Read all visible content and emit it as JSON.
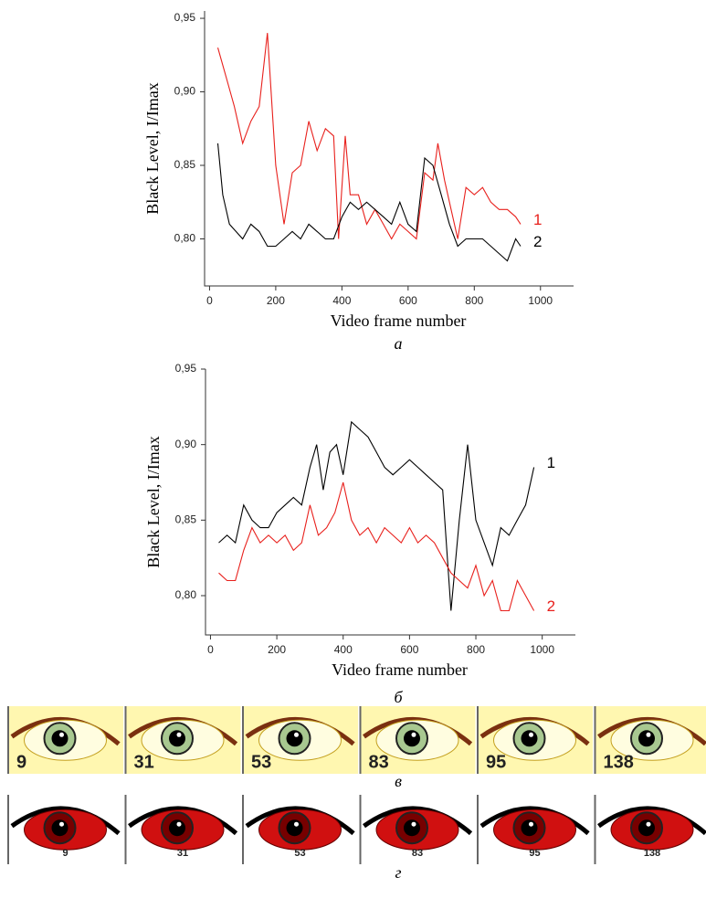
{
  "chart_data": [
    {
      "type": "line",
      "x_label": "Video frame number",
      "y_label": "Black Level, I/Imax",
      "caption": "а",
      "xlim": [
        -15,
        1100
      ],
      "xticks": [
        0,
        200,
        400,
        600,
        800,
        1000
      ],
      "ylim": [
        0.768,
        0.955
      ],
      "yticks": [
        {
          "value": 0.8,
          "label": "0,80"
        },
        {
          "value": 0.85,
          "label": "0,85"
        },
        {
          "value": 0.9,
          "label": "0,90"
        },
        {
          "value": 0.95,
          "label": "0,95"
        }
      ],
      "series": [
        {
          "name": "1",
          "color": "#e8201c",
          "x": [
            25,
            50,
            75,
            100,
            125,
            150,
            175,
            200,
            225,
            250,
            275,
            300,
            325,
            350,
            375,
            390,
            410,
            425,
            450,
            475,
            500,
            525,
            550,
            575,
            600,
            625,
            650,
            675,
            690,
            710,
            730,
            750,
            775,
            800,
            825,
            850,
            875,
            900,
            925,
            940
          ],
          "values": [
            0.93,
            0.91,
            0.89,
            0.865,
            0.88,
            0.89,
            0.94,
            0.85,
            0.81,
            0.845,
            0.85,
            0.88,
            0.86,
            0.875,
            0.87,
            0.8,
            0.87,
            0.83,
            0.83,
            0.81,
            0.82,
            0.81,
            0.8,
            0.81,
            0.805,
            0.8,
            0.845,
            0.84,
            0.865,
            0.84,
            0.82,
            0.8,
            0.835,
            0.83,
            0.835,
            0.825,
            0.82,
            0.82,
            0.815,
            0.81
          ]
        },
        {
          "name": "2",
          "color": "#000000",
          "x": [
            25,
            40,
            60,
            80,
            100,
            125,
            150,
            175,
            200,
            225,
            250,
            275,
            300,
            325,
            350,
            375,
            400,
            425,
            450,
            475,
            500,
            525,
            550,
            575,
            600,
            625,
            650,
            675,
            700,
            725,
            750,
            775,
            800,
            825,
            850,
            875,
            900,
            925,
            940
          ],
          "values": [
            0.865,
            0.83,
            0.81,
            0.805,
            0.8,
            0.81,
            0.805,
            0.795,
            0.795,
            0.8,
            0.805,
            0.8,
            0.81,
            0.805,
            0.8,
            0.8,
            0.815,
            0.825,
            0.82,
            0.825,
            0.82,
            0.815,
            0.81,
            0.825,
            0.81,
            0.805,
            0.855,
            0.85,
            0.83,
            0.81,
            0.795,
            0.8,
            0.8,
            0.8,
            0.795,
            0.79,
            0.785,
            0.8,
            0.795
          ]
        }
      ]
    },
    {
      "type": "line",
      "x_label": "Video frame number",
      "y_label": "Black Level, I/Imax",
      "caption": "б",
      "xlim": [
        -15,
        1100
      ],
      "xticks": [
        0,
        200,
        400,
        600,
        800,
        1000
      ],
      "ylim": [
        0.774,
        0.95
      ],
      "yticks": [
        {
          "value": 0.8,
          "label": "0,80"
        },
        {
          "value": 0.85,
          "label": "0,85"
        },
        {
          "value": 0.9,
          "label": "0,90"
        },
        {
          "value": 0.95,
          "label": "0,95"
        }
      ],
      "series": [
        {
          "name": "1",
          "color": "#000000",
          "x": [
            25,
            50,
            75,
            100,
            125,
            150,
            175,
            200,
            225,
            250,
            275,
            300,
            320,
            340,
            360,
            380,
            400,
            425,
            450,
            475,
            500,
            525,
            550,
            575,
            600,
            625,
            650,
            675,
            700,
            725,
            750,
            775,
            800,
            825,
            850,
            875,
            900,
            925,
            950,
            975
          ],
          "values": [
            0.835,
            0.84,
            0.835,
            0.86,
            0.85,
            0.845,
            0.845,
            0.855,
            0.86,
            0.865,
            0.86,
            0.885,
            0.9,
            0.87,
            0.895,
            0.9,
            0.88,
            0.915,
            0.91,
            0.905,
            0.895,
            0.885,
            0.88,
            0.885,
            0.89,
            0.885,
            0.88,
            0.875,
            0.87,
            0.79,
            0.85,
            0.9,
            0.85,
            0.835,
            0.82,
            0.845,
            0.84,
            0.85,
            0.86,
            0.885
          ]
        },
        {
          "name": "2",
          "color": "#e8201c",
          "x": [
            25,
            50,
            75,
            100,
            125,
            150,
            175,
            200,
            225,
            250,
            275,
            300,
            325,
            350,
            375,
            400,
            425,
            450,
            475,
            500,
            525,
            550,
            575,
            600,
            625,
            650,
            675,
            700,
            725,
            750,
            775,
            800,
            825,
            850,
            875,
            900,
            925,
            950,
            975
          ],
          "values": [
            0.815,
            0.81,
            0.81,
            0.83,
            0.845,
            0.835,
            0.84,
            0.835,
            0.84,
            0.83,
            0.835,
            0.86,
            0.84,
            0.845,
            0.855,
            0.875,
            0.85,
            0.84,
            0.845,
            0.835,
            0.845,
            0.84,
            0.835,
            0.845,
            0.835,
            0.84,
            0.835,
            0.825,
            0.815,
            0.81,
            0.805,
            0.82,
            0.8,
            0.81,
            0.79,
            0.79,
            0.81,
            0.8,
            0.79
          ]
        }
      ]
    }
  ],
  "strips": [
    {
      "caption": "в",
      "frames": [
        9,
        31,
        53,
        83,
        95,
        138
      ]
    },
    {
      "caption": "г",
      "frames": [
        9,
        31,
        53,
        83,
        95,
        138
      ]
    }
  ]
}
